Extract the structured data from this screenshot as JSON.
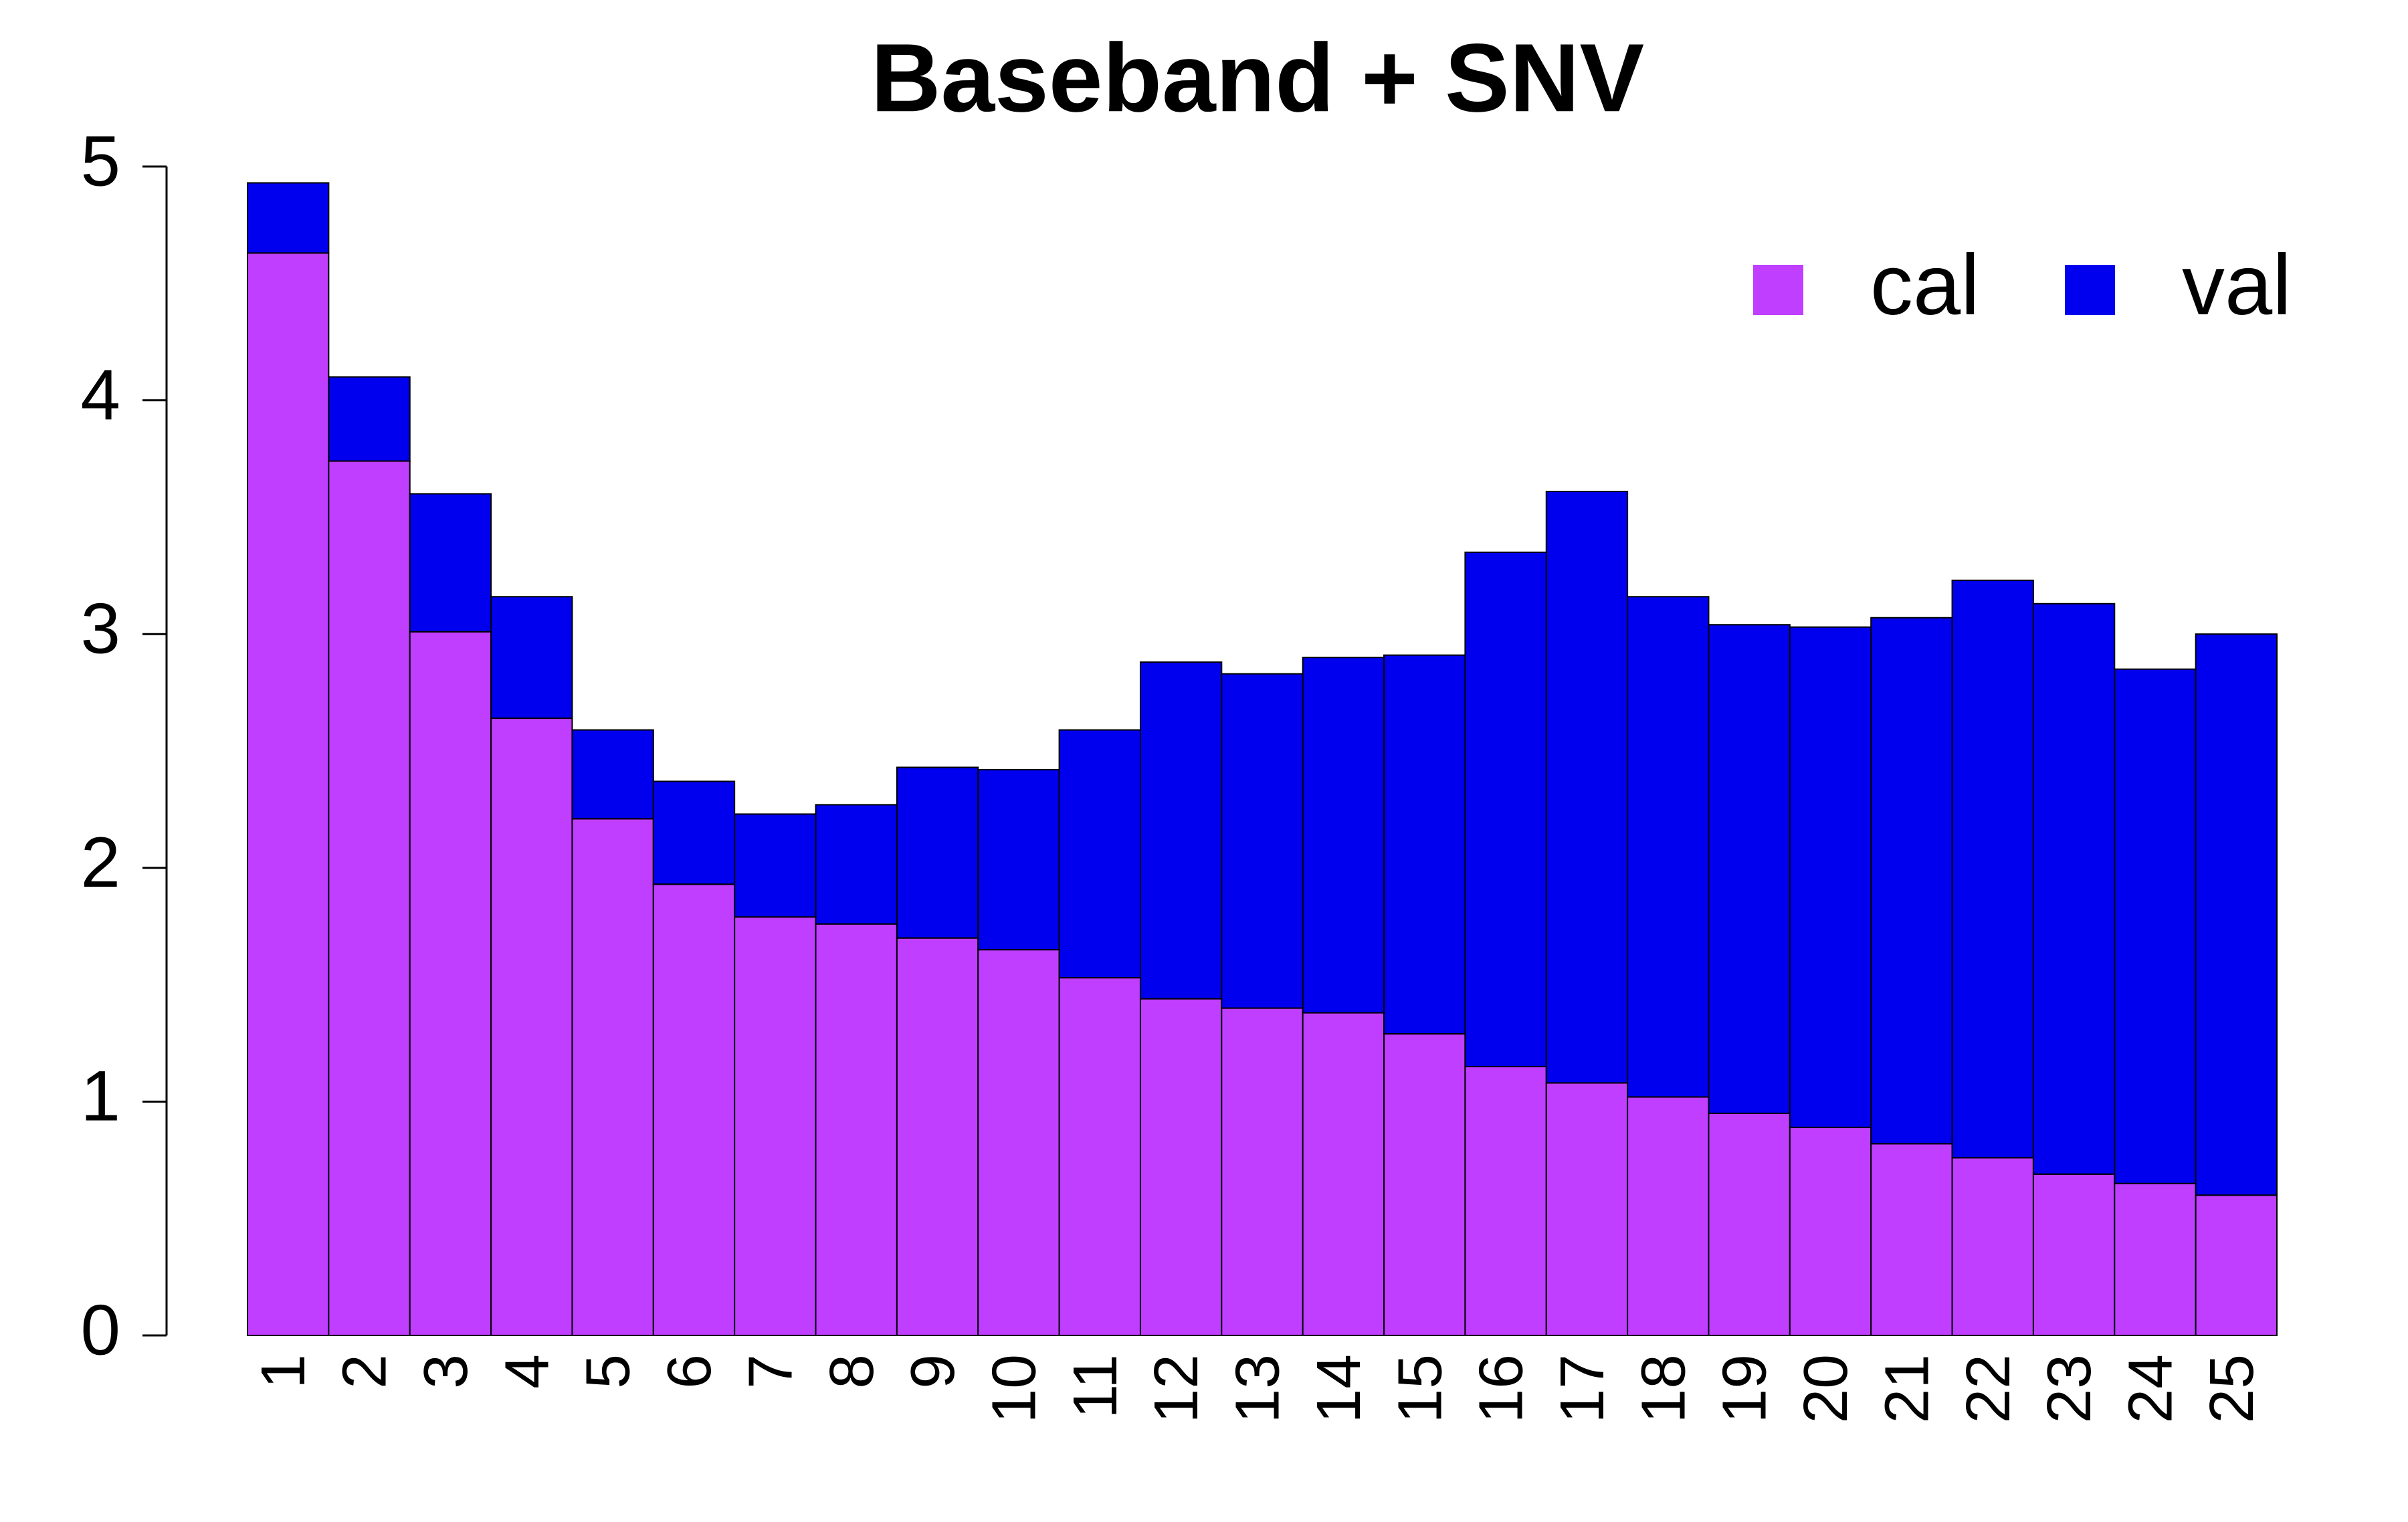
{
  "chart_data": {
    "type": "stacked_bar",
    "title": "Baseband + SNV",
    "categories": [
      "1",
      "2",
      "3",
      "4",
      "5",
      "6",
      "7",
      "8",
      "9",
      "10",
      "11",
      "12",
      "13",
      "14",
      "15",
      "16",
      "17",
      "18",
      "19",
      "20",
      "21",
      "22",
      "23",
      "24",
      "25"
    ],
    "series": [
      {
        "name": "cal",
        "color": "#bf3eff",
        "values": [
          4.63,
          3.74,
          3.01,
          2.64,
          2.21,
          1.93,
          1.79,
          1.76,
          1.7,
          1.65,
          1.53,
          1.44,
          1.4,
          1.38,
          1.29,
          1.15,
          1.08,
          1.02,
          0.95,
          0.89,
          0.82,
          0.76,
          0.69,
          0.65,
          0.6
        ]
      },
      {
        "name": "val",
        "color": "#0000ee",
        "values": [
          0.3,
          0.36,
          0.59,
          0.52,
          0.38,
          0.44,
          0.44,
          0.51,
          0.73,
          0.77,
          1.06,
          1.44,
          1.43,
          1.52,
          1.62,
          2.2,
          2.53,
          2.14,
          2.09,
          2.14,
          2.25,
          2.47,
          2.44,
          2.2,
          2.4
        ]
      }
    ],
    "ylim": [
      0,
      5
    ],
    "yticks": [
      0,
      1,
      2,
      3,
      4,
      5
    ],
    "legend": "top-right"
  }
}
